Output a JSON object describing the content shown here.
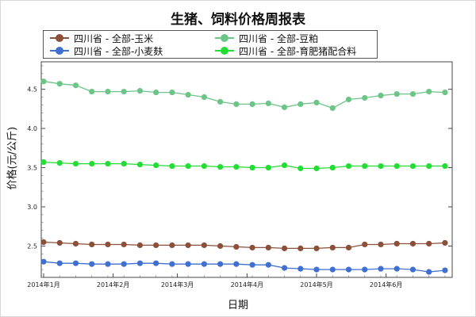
{
  "chart_data": {
    "type": "line",
    "title": "生猪、饲料价格周报表",
    "xlabel": "日期",
    "ylabel": "价格(元/公斤)",
    "ylim": [
      2.1,
      4.85
    ],
    "yticks": [
      2.5,
      3.0,
      3.5,
      4.0,
      4.5
    ],
    "ytick_labels": [
      "2.5",
      "3.0",
      "3.5",
      "4.0",
      "4.5"
    ],
    "x_tick_labels": [
      "2014年1月",
      "2014年2月",
      "2014年3月",
      "2014年4月",
      "2014年5月",
      "2014年6月"
    ],
    "x_tick_positions": [
      0,
      4.33,
      8.33,
      12.67,
      17,
      21.33
    ],
    "x_range": [
      0,
      25.3
    ],
    "grid": false,
    "legend_placement": "top",
    "series": [
      {
        "name": "四川省 - 全部-玉米",
        "color": "#8b4f3a",
        "x": [
          0,
          1,
          2,
          3,
          4,
          5,
          6,
          7,
          8,
          9,
          10,
          11,
          12,
          13,
          14,
          15,
          16,
          17,
          18,
          19,
          20,
          21,
          22,
          23,
          24,
          25
        ],
        "values": [
          2.55,
          2.54,
          2.53,
          2.52,
          2.52,
          2.52,
          2.51,
          2.51,
          2.51,
          2.51,
          2.51,
          2.5,
          2.49,
          2.48,
          2.48,
          2.47,
          2.47,
          2.47,
          2.48,
          2.48,
          2.52,
          2.52,
          2.53,
          2.53,
          2.53,
          2.54
        ]
      },
      {
        "name": "四川省 - 全部-豆粕",
        "color": "#6cc487",
        "x": [
          0,
          1,
          2,
          3,
          4,
          5,
          6,
          7,
          8,
          9,
          10,
          11,
          12,
          13,
          14,
          15,
          16,
          17,
          18,
          19,
          20,
          21,
          22,
          23,
          24,
          25
        ],
        "values": [
          4.6,
          4.57,
          4.55,
          4.47,
          4.47,
          4.47,
          4.48,
          4.46,
          4.46,
          4.43,
          4.4,
          4.34,
          4.31,
          4.31,
          4.32,
          4.27,
          4.31,
          4.33,
          4.26,
          4.37,
          4.39,
          4.42,
          4.44,
          4.44,
          4.47,
          4.46
        ]
      },
      {
        "name": "四川省 - 全部-小麦麸",
        "color": "#3f6fd1",
        "x": [
          0,
          1,
          2,
          3,
          4,
          5,
          6,
          7,
          8,
          9,
          10,
          11,
          12,
          13,
          14,
          15,
          16,
          17,
          18,
          19,
          20,
          21,
          22,
          23,
          24,
          25
        ],
        "values": [
          2.3,
          2.28,
          2.28,
          2.27,
          2.27,
          2.27,
          2.28,
          2.28,
          2.27,
          2.27,
          2.27,
          2.27,
          2.27,
          2.26,
          2.26,
          2.22,
          2.21,
          2.2,
          2.2,
          2.2,
          2.2,
          2.21,
          2.21,
          2.2,
          2.17,
          2.19
        ]
      },
      {
        "name": "四川省 - 全部-育肥猪配合料",
        "color": "#22dd33",
        "x": [
          0,
          1,
          2,
          3,
          4,
          5,
          6,
          7,
          8,
          9,
          10,
          11,
          12,
          13,
          14,
          15,
          16,
          17,
          18,
          19,
          20,
          21,
          22,
          23,
          24,
          25
        ],
        "values": [
          3.57,
          3.56,
          3.55,
          3.55,
          3.55,
          3.55,
          3.54,
          3.53,
          3.52,
          3.52,
          3.52,
          3.51,
          3.51,
          3.5,
          3.5,
          3.53,
          3.49,
          3.49,
          3.5,
          3.52,
          3.52,
          3.52,
          3.52,
          3.52,
          3.52,
          3.52
        ]
      }
    ]
  }
}
